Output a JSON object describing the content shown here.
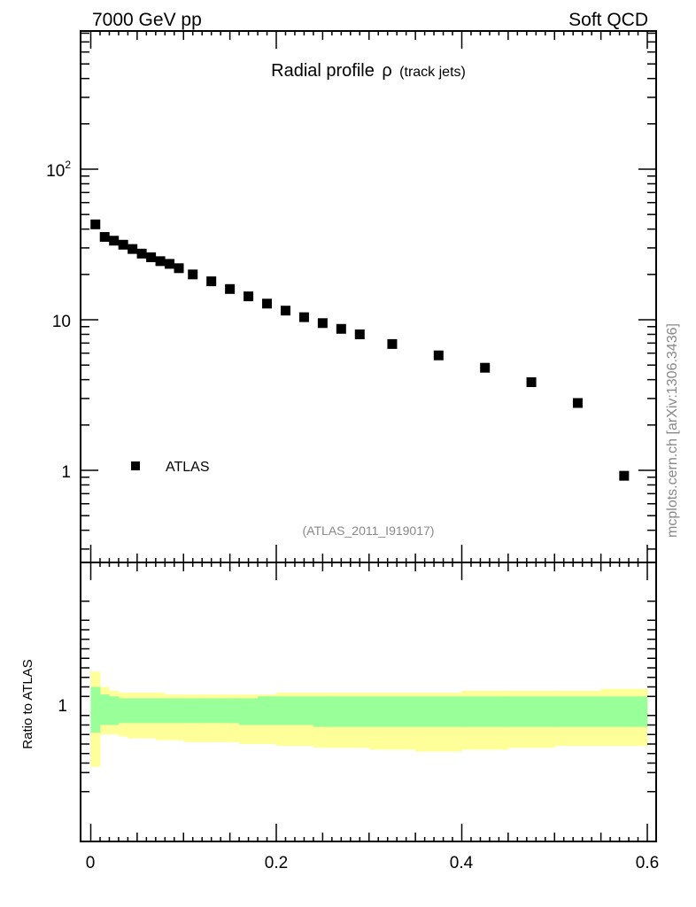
{
  "header": {
    "left": "7000 GeV pp",
    "right": "Soft QCD"
  },
  "side_label": "mcplots.cern.ch [arXiv:1306.3436]",
  "chart_data": [
    {
      "type": "scatter",
      "title": "Radial profile",
      "title_symbol": "ρ",
      "title_suffix": "(track jets)",
      "watermark": "(ATLAS_2011_I919017)",
      "yscale": "log",
      "xlim": [
        -0.01,
        0.6
      ],
      "ylim": [
        0.27,
        800
      ],
      "ytick_labels": {
        "base": "10",
        "exp": "2",
        "ten": "10",
        "one": "1"
      },
      "legend": {
        "position": "bottom-left",
        "entries": [
          "ATLAS"
        ]
      },
      "series": [
        {
          "name": "ATLAS",
          "marker": "square",
          "color": "#000000",
          "points": [
            [
              0.005,
              43
            ],
            [
              0.015,
              35.5
            ],
            [
              0.025,
              33.5
            ],
            [
              0.035,
              31.5
            ],
            [
              0.045,
              29.5
            ],
            [
              0.055,
              27.5
            ],
            [
              0.065,
              26
            ],
            [
              0.075,
              24.5
            ],
            [
              0.085,
              23.5
            ],
            [
              0.095,
              22
            ],
            [
              0.11,
              20
            ],
            [
              0.13,
              18
            ],
            [
              0.15,
              16
            ],
            [
              0.17,
              14.3
            ],
            [
              0.19,
              12.8
            ],
            [
              0.21,
              11.5
            ],
            [
              0.23,
              10.4
            ],
            [
              0.25,
              9.5
            ],
            [
              0.27,
              8.7
            ],
            [
              0.29,
              8.0
            ],
            [
              0.325,
              6.9
            ],
            [
              0.375,
              5.8
            ],
            [
              0.425,
              4.8
            ],
            [
              0.475,
              3.85
            ],
            [
              0.525,
              2.8
            ],
            [
              0.575,
              0.92
            ]
          ]
        }
      ]
    },
    {
      "type": "area",
      "ylabel": "Ratio to ATLAS",
      "ytick_labels": [
        "1"
      ],
      "xtick_labels": [
        "0",
        "0.2",
        "0.4",
        "0.6"
      ],
      "xlim": [
        -0.01,
        0.6
      ],
      "ylim": [
        0.5,
        1.5
      ],
      "reference": 1,
      "bins": [
        [
          0.0,
          0.01
        ],
        [
          0.01,
          0.02
        ],
        [
          0.02,
          0.03
        ],
        [
          0.03,
          0.04
        ],
        [
          0.04,
          0.05
        ],
        [
          0.05,
          0.06
        ],
        [
          0.06,
          0.07
        ],
        [
          0.07,
          0.08
        ],
        [
          0.08,
          0.09
        ],
        [
          0.09,
          0.1
        ],
        [
          0.1,
          0.12
        ],
        [
          0.12,
          0.14
        ],
        [
          0.14,
          0.16
        ],
        [
          0.16,
          0.18
        ],
        [
          0.18,
          0.2
        ],
        [
          0.2,
          0.22
        ],
        [
          0.22,
          0.24
        ],
        [
          0.24,
          0.26
        ],
        [
          0.26,
          0.28
        ],
        [
          0.28,
          0.3
        ],
        [
          0.3,
          0.35
        ],
        [
          0.35,
          0.4
        ],
        [
          0.4,
          0.45
        ],
        [
          0.45,
          0.5
        ],
        [
          0.5,
          0.55
        ],
        [
          0.55,
          0.6
        ]
      ],
      "stat_band": {
        "color": "#99ff99",
        "lo": [
          0.86,
          0.9,
          0.9,
          0.91,
          0.91,
          0.91,
          0.91,
          0.91,
          0.91,
          0.91,
          0.91,
          0.91,
          0.91,
          0.9,
          0.9,
          0.9,
          0.9,
          0.89,
          0.89,
          0.89,
          0.89,
          0.89,
          0.89,
          0.89,
          0.89,
          0.89
        ],
        "hi": [
          1.1,
          1.06,
          1.05,
          1.04,
          1.04,
          1.04,
          1.04,
          1.04,
          1.04,
          1.04,
          1.04,
          1.04,
          1.04,
          1.04,
          1.05,
          1.05,
          1.05,
          1.05,
          1.05,
          1.05,
          1.05,
          1.05,
          1.05,
          1.05,
          1.05,
          1.05
        ]
      },
      "syst_band": {
        "color": "#ffff99",
        "lo": [
          0.68,
          0.85,
          0.85,
          0.84,
          0.83,
          0.83,
          0.83,
          0.82,
          0.82,
          0.82,
          0.81,
          0.81,
          0.81,
          0.8,
          0.8,
          0.79,
          0.79,
          0.78,
          0.78,
          0.78,
          0.77,
          0.76,
          0.77,
          0.78,
          0.79,
          0.79
        ],
        "hi": [
          1.18,
          1.1,
          1.08,
          1.07,
          1.07,
          1.07,
          1.07,
          1.07,
          1.06,
          1.06,
          1.06,
          1.06,
          1.06,
          1.06,
          1.06,
          1.07,
          1.07,
          1.07,
          1.07,
          1.07,
          1.07,
          1.07,
          1.08,
          1.08,
          1.08,
          1.09
        ]
      }
    }
  ]
}
